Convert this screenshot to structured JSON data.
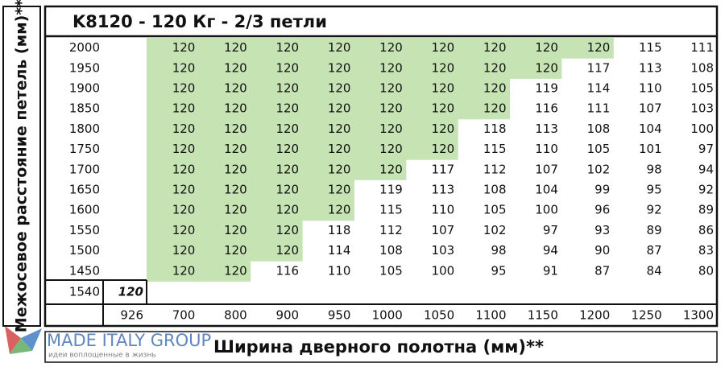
{
  "title": "K8120 - 120 Кг - 2/3 петли",
  "y_axis_label": "Межосевое расстояние петель (мм)**",
  "x_axis_label": "Ширина дверного полотна (мм)**",
  "logo": {
    "name": "MADE ITALY GROUP",
    "tagline": "идеи воплощенные в жизнь"
  },
  "table": {
    "columns": [
      926,
      700,
      800,
      900,
      950,
      1000,
      1050,
      1100,
      1150,
      1200,
      1250,
      1300
    ],
    "rows": [
      {
        "label": 2000,
        "values": [
          null,
          120,
          120,
          120,
          120,
          120,
          120,
          120,
          120,
          120,
          115,
          111
        ]
      },
      {
        "label": 1950,
        "values": [
          null,
          120,
          120,
          120,
          120,
          120,
          120,
          120,
          120,
          117,
          113,
          108
        ]
      },
      {
        "label": 1900,
        "values": [
          null,
          120,
          120,
          120,
          120,
          120,
          120,
          120,
          119,
          114,
          110,
          105
        ]
      },
      {
        "label": 1850,
        "values": [
          null,
          120,
          120,
          120,
          120,
          120,
          120,
          120,
          116,
          111,
          107,
          103
        ]
      },
      {
        "label": 1800,
        "values": [
          null,
          120,
          120,
          120,
          120,
          120,
          120,
          118,
          113,
          108,
          104,
          100
        ]
      },
      {
        "label": 1750,
        "values": [
          null,
          120,
          120,
          120,
          120,
          120,
          120,
          115,
          110,
          105,
          101,
          97
        ]
      },
      {
        "label": 1700,
        "values": [
          null,
          120,
          120,
          120,
          120,
          120,
          117,
          112,
          107,
          102,
          98,
          94
        ]
      },
      {
        "label": 1650,
        "values": [
          null,
          120,
          120,
          120,
          120,
          119,
          113,
          108,
          104,
          99,
          95,
          92
        ]
      },
      {
        "label": 1600,
        "values": [
          null,
          120,
          120,
          120,
          120,
          115,
          110,
          105,
          100,
          96,
          92,
          89
        ]
      },
      {
        "label": 1550,
        "values": [
          null,
          120,
          120,
          120,
          118,
          112,
          107,
          102,
          97,
          93,
          89,
          86
        ]
      },
      {
        "label": 1500,
        "values": [
          null,
          120,
          120,
          120,
          114,
          108,
          103,
          98,
          94,
          90,
          87,
          83
        ]
      },
      {
        "label": 1450,
        "values": [
          null,
          120,
          120,
          116,
          110,
          105,
          100,
          95,
          91,
          87,
          84,
          80
        ]
      }
    ],
    "extra_row": {
      "label": 1540,
      "values": [
        120
      ]
    }
  }
}
